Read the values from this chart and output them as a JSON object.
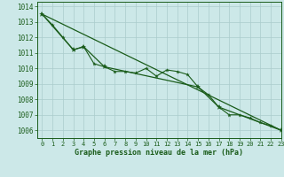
{
  "title": "Graphe pression niveau de la mer (hPa)",
  "background_color": "#cce8e8",
  "grid_color": "#aacccc",
  "line_color": "#1a5c1a",
  "marker_color": "#1a5c1a",
  "xlim": [
    -0.5,
    23
  ],
  "ylim": [
    1005.5,
    1014.3
  ],
  "xticks": [
    0,
    1,
    2,
    3,
    4,
    5,
    6,
    7,
    8,
    9,
    10,
    11,
    12,
    13,
    14,
    15,
    16,
    17,
    18,
    19,
    20,
    21,
    22,
    23
  ],
  "yticks": [
    1006,
    1007,
    1008,
    1009,
    1010,
    1011,
    1012,
    1013,
    1014
  ],
  "series1_x": [
    0,
    1,
    2,
    3,
    4,
    5,
    6,
    7,
    8,
    9,
    10,
    11,
    12,
    13,
    14,
    15,
    16,
    17,
    18,
    19,
    20,
    21,
    22,
    23
  ],
  "series1_y": [
    1013.5,
    1012.8,
    1012.0,
    1011.2,
    1011.4,
    1010.3,
    1010.1,
    1009.8,
    1009.8,
    1009.7,
    1010.0,
    1009.5,
    1009.9,
    1009.8,
    1009.6,
    1008.8,
    1008.3,
    1007.5,
    1007.0,
    1007.0,
    1006.8,
    1006.5,
    1006.3,
    1006.0
  ],
  "series2_x": [
    0,
    3,
    4,
    6,
    15,
    17,
    23
  ],
  "series2_y": [
    1013.5,
    1011.2,
    1011.4,
    1010.1,
    1008.8,
    1007.5,
    1006.0
  ],
  "trend_x": [
    0,
    23
  ],
  "trend_y": [
    1013.5,
    1006.0
  ]
}
